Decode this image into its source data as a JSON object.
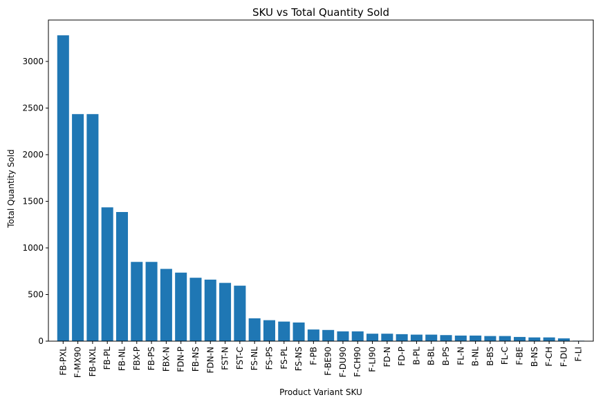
{
  "chart_data": {
    "type": "bar",
    "title": "SKU vs Total Quantity Sold",
    "xlabel": "Product Variant SKU",
    "ylabel": "Total Quantity Sold",
    "categories": [
      "FB-PXL",
      "F-MX90",
      "FB-NXL",
      "FB-PL",
      "FB-NL",
      "FBX-P",
      "FB-PS",
      "FBX-N",
      "FDN-P",
      "FB-NS",
      "FDN-N",
      "FST-N",
      "FST-C",
      "FS-NL",
      "FS-PS",
      "FS-PL",
      "FS-NS",
      "F-PB",
      "F-BE90",
      "F-DU90",
      "F-CH90",
      "F-LI90",
      "FD-N",
      "FD-P",
      "B-PL",
      "B-BL",
      "B-PS",
      "FL-N",
      "B-NL",
      "B-BS",
      "FL-C",
      "F-BE",
      "B-NS",
      "F-CH",
      "F-DU",
      "F-LI"
    ],
    "values": [
      3280,
      2435,
      2435,
      1435,
      1385,
      850,
      850,
      775,
      735,
      680,
      660,
      625,
      595,
      245,
      225,
      210,
      200,
      125,
      120,
      105,
      105,
      80,
      80,
      75,
      70,
      70,
      65,
      60,
      60,
      55,
      55,
      45,
      40,
      40,
      30,
      5
    ],
    "yticks": [
      0,
      500,
      1000,
      1500,
      2000,
      2500,
      3000
    ],
    "ylim": [
      0,
      3444
    ],
    "grid": false,
    "colors": {
      "bar": "#1f77b4",
      "axis": "#000000",
      "background": "#ffffff"
    }
  }
}
